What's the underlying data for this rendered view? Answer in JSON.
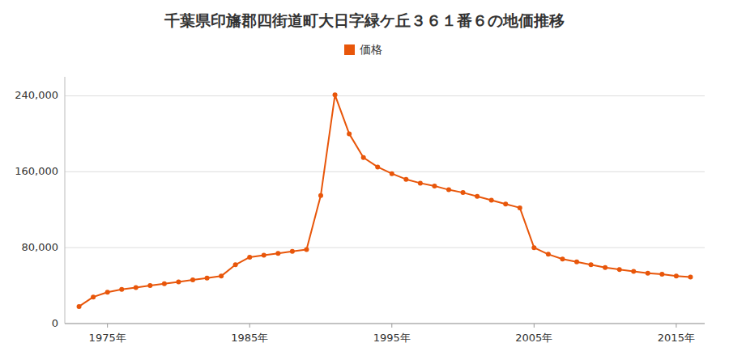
{
  "chart_data": {
    "type": "line",
    "title": "千葉県印旛郡四街道町大日字緑ケ丘３６１番６の地価推移",
    "x": [
      1973,
      1974,
      1975,
      1976,
      1977,
      1978,
      1979,
      1980,
      1981,
      1982,
      1983,
      1984,
      1985,
      1986,
      1987,
      1988,
      1989,
      1990,
      1991,
      1992,
      1993,
      1994,
      1995,
      1996,
      1997,
      1998,
      1999,
      2000,
      2001,
      2002,
      2003,
      2004,
      2005,
      2006,
      2007,
      2008,
      2009,
      2010,
      2011,
      2012,
      2013,
      2014,
      2015,
      2016
    ],
    "series": [
      {
        "name": "価格",
        "color": "#E8560A",
        "marker": "circle",
        "line_style": "solid",
        "values": [
          18000,
          28000,
          33000,
          36000,
          38000,
          40000,
          42000,
          44000,
          46000,
          48000,
          50000,
          62000,
          70000,
          72000,
          74000,
          76000,
          78000,
          135000,
          241000,
          200000,
          175000,
          165000,
          158000,
          152000,
          148000,
          145000,
          141000,
          138000,
          134000,
          130000,
          126000,
          122000,
          80000,
          73000,
          68000,
          65000,
          62000,
          59000,
          57000,
          55000,
          53000,
          52000,
          50000,
          49000
        ]
      }
    ],
    "xlim": [
      1972,
      2017
    ],
    "xticks": [
      {
        "value": 1975,
        "label": "1975年"
      },
      {
        "value": 1985,
        "label": "1985年"
      },
      {
        "value": 1995,
        "label": "1995年"
      },
      {
        "value": 2005,
        "label": "2005年"
      },
      {
        "value": 2015,
        "label": "2015年"
      }
    ],
    "ylim": [
      0,
      260000
    ],
    "yticks": [
      0,
      {
        "value": 80000,
        "label": "80,000"
      },
      {
        "value": 160000,
        "label": "160,000"
      },
      {
        "value": 240000,
        "label": "240,000"
      }
    ],
    "grid": true,
    "legend": "top"
  }
}
